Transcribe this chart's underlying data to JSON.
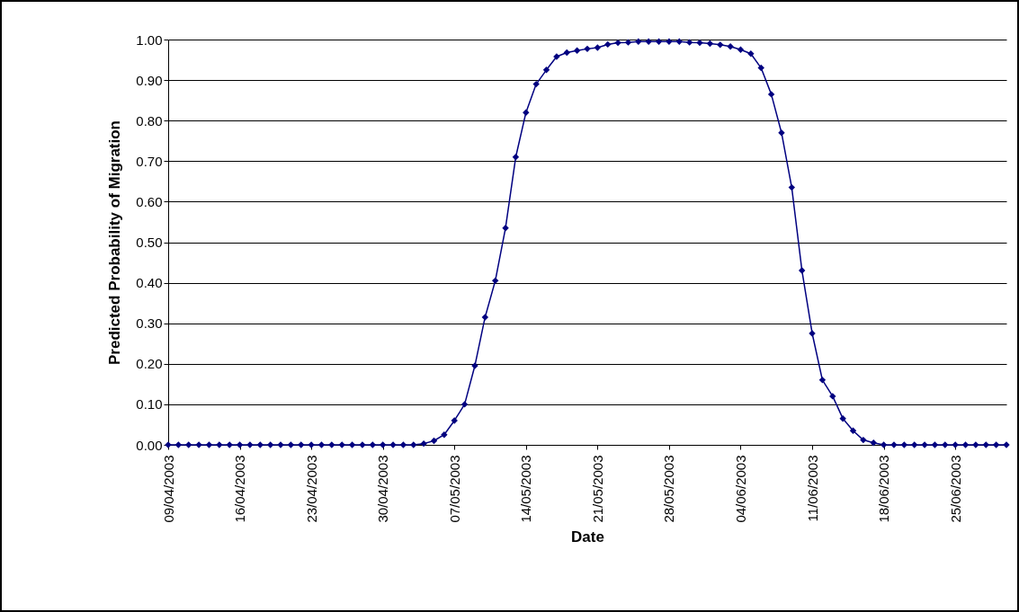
{
  "chart_data": {
    "type": "line",
    "xlabel": "Date",
    "ylabel": "Predicted Probability of Migration",
    "x": [
      "2003-04-09",
      "2003-04-10",
      "2003-04-11",
      "2003-04-12",
      "2003-04-13",
      "2003-04-14",
      "2003-04-15",
      "2003-04-16",
      "2003-04-17",
      "2003-04-18",
      "2003-04-19",
      "2003-04-20",
      "2003-04-21",
      "2003-04-22",
      "2003-04-23",
      "2003-04-24",
      "2003-04-25",
      "2003-04-26",
      "2003-04-27",
      "2003-04-28",
      "2003-04-29",
      "2003-04-30",
      "2003-05-01",
      "2003-05-02",
      "2003-05-03",
      "2003-05-04",
      "2003-05-05",
      "2003-05-06",
      "2003-05-07",
      "2003-05-08",
      "2003-05-09",
      "2003-05-10",
      "2003-05-11",
      "2003-05-12",
      "2003-05-13",
      "2003-05-14",
      "2003-05-15",
      "2003-05-16",
      "2003-05-17",
      "2003-05-18",
      "2003-05-19",
      "2003-05-20",
      "2003-05-21",
      "2003-05-22",
      "2003-05-23",
      "2003-05-24",
      "2003-05-25",
      "2003-05-26",
      "2003-05-27",
      "2003-05-28",
      "2003-05-29",
      "2003-05-30",
      "2003-05-31",
      "2003-06-01",
      "2003-06-02",
      "2003-06-03",
      "2003-06-04",
      "2003-06-05",
      "2003-06-06",
      "2003-06-07",
      "2003-06-08",
      "2003-06-09",
      "2003-06-10",
      "2003-06-11",
      "2003-06-12",
      "2003-06-13",
      "2003-06-14",
      "2003-06-15",
      "2003-06-16",
      "2003-06-17",
      "2003-06-18",
      "2003-06-19",
      "2003-06-20",
      "2003-06-21",
      "2003-06-22",
      "2003-06-23",
      "2003-06-24",
      "2003-06-25",
      "2003-06-26",
      "2003-06-27",
      "2003-06-28",
      "2003-06-29",
      "2003-06-30"
    ],
    "series": [
      {
        "color": "#000080",
        "values": [
          0,
          0,
          0,
          0,
          0,
          0,
          0,
          0,
          0,
          0,
          0,
          0,
          0,
          0,
          0,
          0,
          0,
          0,
          0,
          0,
          0,
          0,
          0,
          0,
          0,
          0.003,
          0.01,
          0.025,
          0.06,
          0.1,
          0.195,
          0.315,
          0.405,
          0.535,
          0.71,
          0.82,
          0.89,
          0.925,
          0.958,
          0.968,
          0.973,
          0.977,
          0.98,
          0.988,
          0.992,
          0.993,
          0.995,
          0.995,
          0.995,
          0.995,
          0.995,
          0.993,
          0.992,
          0.99,
          0.987,
          0.983,
          0.975,
          0.965,
          0.93,
          0.865,
          0.77,
          0.635,
          0.43,
          0.275,
          0.16,
          0.12,
          0.065,
          0.035,
          0.012,
          0.005,
          0,
          0,
          0,
          0,
          0,
          0,
          0,
          0,
          0,
          0,
          0,
          0,
          0
        ]
      }
    ],
    "xlim": [
      "2003-04-09",
      "2003-06-30"
    ],
    "xticks": [
      {
        "value": "2003-04-09",
        "label": "09/04/2003"
      },
      {
        "value": "2003-04-16",
        "label": "16/04/2003"
      },
      {
        "value": "2003-04-23",
        "label": "23/04/2003"
      },
      {
        "value": "2003-04-30",
        "label": "30/04/2003"
      },
      {
        "value": "2003-05-07",
        "label": "07/05/2003"
      },
      {
        "value": "2003-05-14",
        "label": "14/05/2003"
      },
      {
        "value": "2003-05-21",
        "label": "21/05/2003"
      },
      {
        "value": "2003-05-28",
        "label": "28/05/2003"
      },
      {
        "value": "2003-06-04",
        "label": "04/06/2003"
      },
      {
        "value": "2003-06-11",
        "label": "11/06/2003"
      },
      {
        "value": "2003-06-18",
        "label": "18/06/2003"
      },
      {
        "value": "2003-06-25",
        "label": "25/06/2003"
      }
    ],
    "ylim": [
      0,
      1
    ],
    "yticks": [
      {
        "value": 0,
        "label": "0.00"
      },
      {
        "value": 0.1,
        "label": "0.10"
      },
      {
        "value": 0.2,
        "label": "0.20"
      },
      {
        "value": 0.3,
        "label": "0.30"
      },
      {
        "value": 0.4,
        "label": "0.40"
      },
      {
        "value": 0.5,
        "label": "0.50"
      },
      {
        "value": 0.6,
        "label": "0.60"
      },
      {
        "value": 0.7,
        "label": "0.70"
      },
      {
        "value": 0.8,
        "label": "0.80"
      },
      {
        "value": 0.9,
        "label": "0.90"
      },
      {
        "value": 1,
        "label": "1.00"
      }
    ],
    "grid": "y",
    "marker": "diamond",
    "line_style": "solid"
  }
}
